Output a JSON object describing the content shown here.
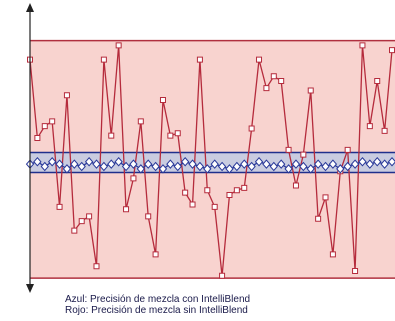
{
  "chart_data": {
    "type": "line",
    "x": [
      0,
      1,
      2,
      3,
      4,
      5,
      6,
      7,
      8,
      9,
      10,
      11,
      12,
      13,
      14,
      15,
      16,
      17,
      18,
      19,
      20,
      21,
      22,
      23,
      24,
      25,
      26,
      27,
      28,
      29,
      30,
      31,
      32,
      33,
      34,
      35,
      36,
      37,
      38,
      39,
      40,
      41,
      42,
      43,
      44,
      45,
      46,
      47,
      48,
      49
    ],
    "xlim": [
      0,
      49
    ],
    "ylim": [
      -5,
      115
    ],
    "bands": [
      {
        "lower": 0,
        "upper": 100,
        "fill": "#f8d3cf",
        "color": "#b0303f"
      },
      {
        "lower": 44.5,
        "upper": 52.9,
        "fill": "#c9cce0",
        "color": "#1f2f8c"
      }
    ],
    "series": [
      {
        "name": "Rojo: Precisión de mezcla sin IntelliBlend",
        "color": "#b52b3c",
        "marker": "square",
        "values": [
          92,
          59,
          64,
          66,
          30,
          77,
          20,
          24,
          26,
          5,
          92,
          60,
          98,
          29,
          42,
          66,
          26,
          10,
          75,
          60,
          61,
          36,
          31,
          92,
          37,
          30,
          1,
          35,
          37,
          38,
          63,
          92,
          80,
          85,
          83,
          54,
          39,
          52,
          79,
          25,
          34,
          10,
          45,
          54,
          3,
          98,
          64,
          83,
          62,
          96
        ]
      },
      {
        "name": "Azul: Precisión de mezcla con IntelliBlend",
        "color": "#2a3a9a",
        "marker": "diamond",
        "values": [
          48,
          49,
          47,
          49,
          48,
          46,
          48,
          47,
          49,
          48,
          47,
          48,
          49,
          47,
          48,
          46,
          48,
          47,
          46,
          48,
          47,
          49,
          48,
          47,
          46,
          48,
          47,
          46,
          47,
          48,
          47,
          49,
          48,
          47,
          48,
          46,
          48,
          47,
          46,
          48,
          47,
          48,
          46,
          47,
          48,
          49,
          48,
          49,
          48,
          49
        ]
      }
    ]
  }
}
